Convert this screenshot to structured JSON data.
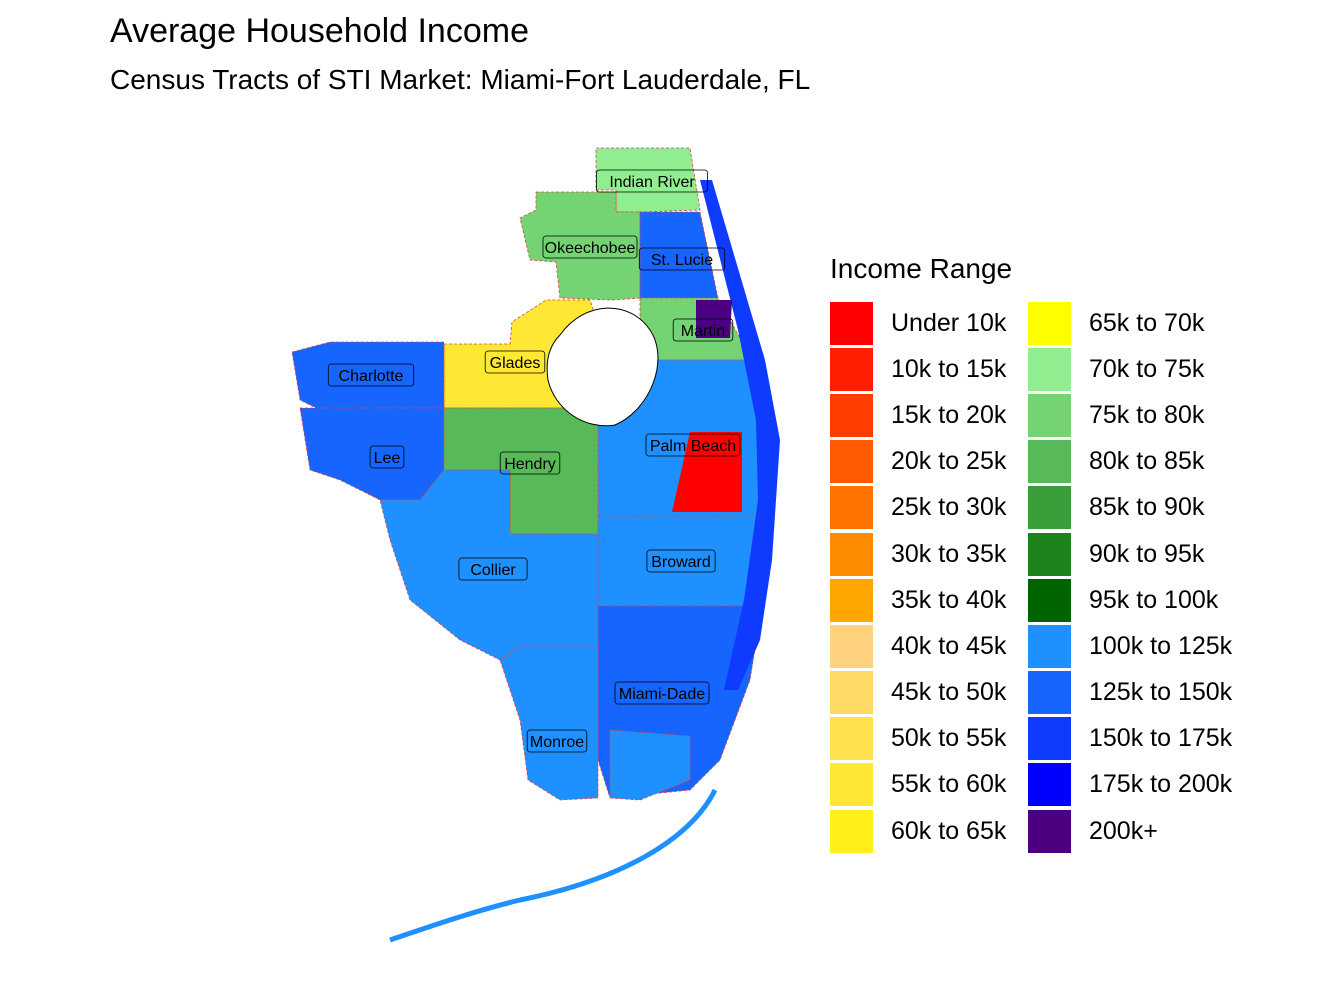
{
  "title": "Average Household Income",
  "subtitle": "Census Tracts of STI Market: Miami-Fort Lauderdale, FL",
  "legend": {
    "title": "Income Range",
    "items": [
      {
        "label": "Under 10k",
        "color": "#ff0000"
      },
      {
        "label": "10k to 15k",
        "color": "#ff1f00"
      },
      {
        "label": "15k to 20k",
        "color": "#ff3d00"
      },
      {
        "label": "20k to 25k",
        "color": "#ff5a00"
      },
      {
        "label": "25k to 30k",
        "color": "#ff7300"
      },
      {
        "label": "30k to 35k",
        "color": "#ff8c00"
      },
      {
        "label": "35k to 40k",
        "color": "#ffa500"
      },
      {
        "label": "40k to 45k",
        "color": "#ffd280"
      },
      {
        "label": "45k to 50k",
        "color": "#ffd966"
      },
      {
        "label": "50k to 55k",
        "color": "#ffe14d"
      },
      {
        "label": "55k to 60k",
        "color": "#ffe833"
      },
      {
        "label": "60k to 65k",
        "color": "#fff01a"
      },
      {
        "label": "65k to 70k",
        "color": "#ffff00"
      },
      {
        "label": "70k to 75k",
        "color": "#90ee90"
      },
      {
        "label": "75k to 80k",
        "color": "#74d474"
      },
      {
        "label": "80k to 85k",
        "color": "#57b957"
      },
      {
        "label": "85k to 90k",
        "color": "#3a9e3a"
      },
      {
        "label": "90k to 95k",
        "color": "#1d831d"
      },
      {
        "label": "95k to 100k",
        "color": "#006400"
      },
      {
        "label": "100k to 125k",
        "color": "#1e90ff"
      },
      {
        "label": "125k to 150k",
        "color": "#1765ff"
      },
      {
        "label": "150k to 175k",
        "color": "#0f3aff"
      },
      {
        "label": "175k to 200k",
        "color": "#0000ff"
      },
      {
        "label": "200k+",
        "color": "#4b0082"
      }
    ]
  },
  "counties": [
    {
      "name": "Indian River",
      "fill": "#90ee90"
    },
    {
      "name": "Okeechobee",
      "fill": "#74d474"
    },
    {
      "name": "St. Lucie",
      "fill": "#1765ff"
    },
    {
      "name": "Martin",
      "fill": "#74d474"
    },
    {
      "name": "Glades",
      "fill": "#ffe833"
    },
    {
      "name": "Charlotte",
      "fill": "#1765ff"
    },
    {
      "name": "Palm Beach",
      "fill": "#1e90ff"
    },
    {
      "name": "Lee",
      "fill": "#1765ff"
    },
    {
      "name": "Hendry",
      "fill": "#57b957"
    },
    {
      "name": "Collier",
      "fill": "#1e90ff"
    },
    {
      "name": "Broward",
      "fill": "#1e90ff"
    },
    {
      "name": "Miami-Dade",
      "fill": "#1765ff"
    },
    {
      "name": "Monroe",
      "fill": "#1e90ff"
    }
  ]
}
